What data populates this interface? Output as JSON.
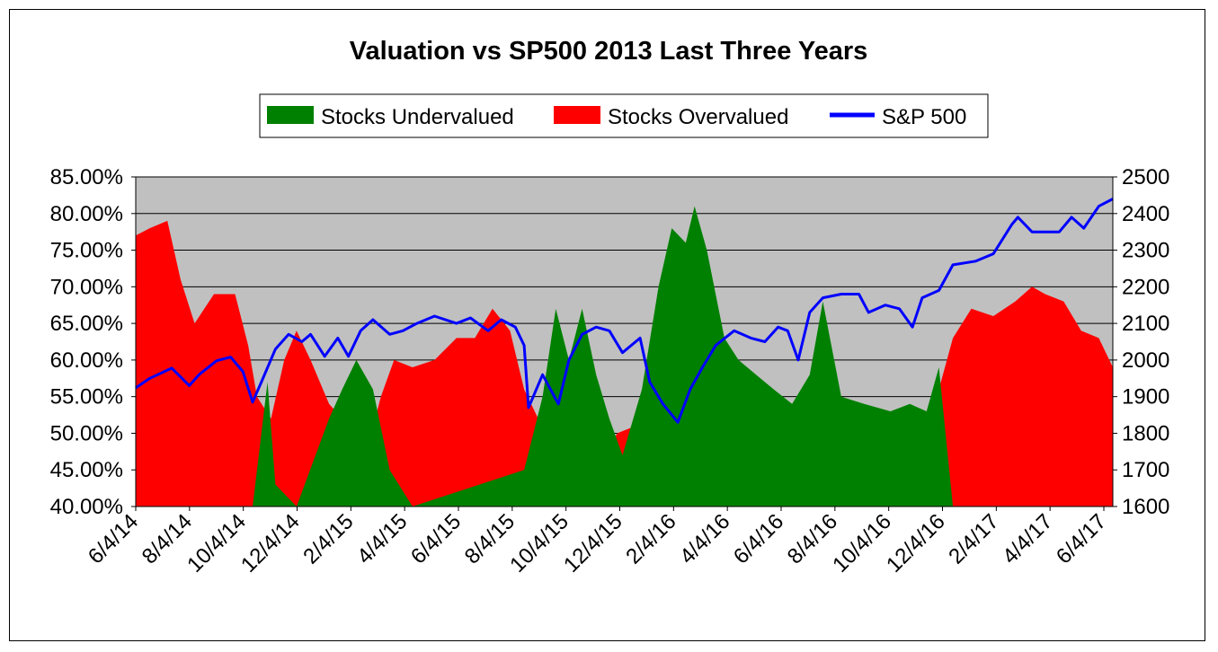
{
  "chart_data": {
    "type": "area",
    "title": "Valuation vs SP500 2013 Last Three Years",
    "legend": {
      "placement": "top",
      "entries": [
        "Stocks Undervalued",
        "Stocks Overvalued",
        "S&P 500"
      ]
    },
    "colors": {
      "undervalued": "#008000",
      "overvalued": "#ff0000",
      "sp500": "#0000ff",
      "plot_background": "#c0c0c0"
    },
    "grid": true,
    "y_left": {
      "range": [
        40,
        85
      ],
      "tick_labels": [
        "40.00%",
        "45.00%",
        "50.00%",
        "55.00%",
        "60.00%",
        "65.00%",
        "70.00%",
        "75.00%",
        "80.00%",
        "85.00%"
      ]
    },
    "y_right": {
      "range": [
        1600,
        2500
      ],
      "tick_labels": [
        "1600",
        "1700",
        "1800",
        "1900",
        "2000",
        "2100",
        "2200",
        "2300",
        "2400",
        "2500"
      ]
    },
    "x": {
      "range": [
        "2014-06-04",
        "2017-06-20"
      ],
      "tick_labels": [
        "6/4/14",
        "8/4/14",
        "10/4/14",
        "12/4/14",
        "2/4/15",
        "4/4/15",
        "6/4/15",
        "8/4/15",
        "10/4/15",
        "12/4/15",
        "2/4/16",
        "4/4/16",
        "6/4/16",
        "8/4/16",
        "10/4/16",
        "12/4/16",
        "2/4/17",
        "4/4/17",
        "6/4/17"
      ]
    },
    "series": [
      {
        "name": "Stocks Overvalued",
        "axis": "left",
        "points": [
          [
            "2014-06-04",
            77
          ],
          [
            "2014-06-20",
            78
          ],
          [
            "2014-07-10",
            79
          ],
          [
            "2014-07-25",
            71
          ],
          [
            "2014-08-10",
            65
          ],
          [
            "2014-09-01",
            69
          ],
          [
            "2014-09-25",
            69
          ],
          [
            "2014-10-10",
            62
          ],
          [
            "2014-10-20",
            55
          ],
          [
            "2014-11-05",
            52
          ],
          [
            "2014-11-20",
            60
          ],
          [
            "2014-12-04",
            64
          ],
          [
            "2014-12-20",
            60
          ],
          [
            "2015-01-10",
            54
          ],
          [
            "2015-01-25",
            52
          ],
          [
            "2015-02-10",
            50
          ],
          [
            "2015-02-25",
            49
          ],
          [
            "2015-03-10",
            55
          ],
          [
            "2015-03-25",
            60
          ],
          [
            "2015-04-15",
            59
          ],
          [
            "2015-05-10",
            60
          ],
          [
            "2015-06-04",
            63
          ],
          [
            "2015-06-25",
            63
          ],
          [
            "2015-07-15",
            67
          ],
          [
            "2015-08-04",
            64
          ],
          [
            "2015-08-20",
            56
          ],
          [
            "2015-09-05",
            52
          ],
          [
            "2015-09-25",
            42
          ],
          [
            "2015-10-15",
            41
          ],
          [
            "2015-11-01",
            44
          ],
          [
            "2015-11-20",
            47
          ],
          [
            "2015-12-04",
            50
          ],
          [
            "2015-12-25",
            51
          ],
          [
            "2016-01-15",
            44
          ],
          [
            "2016-02-04",
            40
          ],
          [
            "2016-03-01",
            40
          ],
          [
            "2016-03-25",
            40
          ],
          [
            "2016-04-15",
            42
          ],
          [
            "2016-05-05",
            40
          ],
          [
            "2016-05-25",
            44
          ],
          [
            "2016-06-15",
            47
          ],
          [
            "2016-07-05",
            49
          ],
          [
            "2016-07-25",
            40
          ],
          [
            "2016-08-10",
            46
          ],
          [
            "2016-09-01",
            48
          ],
          [
            "2016-09-25",
            49
          ],
          [
            "2016-10-15",
            50
          ],
          [
            "2016-11-01",
            48
          ],
          [
            "2016-11-20",
            49
          ],
          [
            "2016-12-04",
            56
          ],
          [
            "2016-12-20",
            63
          ],
          [
            "2017-01-10",
            67
          ],
          [
            "2017-02-04",
            66
          ],
          [
            "2017-03-01",
            68
          ],
          [
            "2017-03-20",
            70
          ],
          [
            "2017-04-04",
            69
          ],
          [
            "2017-04-25",
            68
          ],
          [
            "2017-05-15",
            64
          ],
          [
            "2017-06-04",
            63
          ],
          [
            "2017-06-20",
            59
          ]
        ]
      },
      {
        "name": "Stocks Undervalued",
        "axis": "left",
        "points": [
          [
            "2014-06-04",
            40
          ],
          [
            "2014-10-15",
            40
          ],
          [
            "2014-11-01",
            57
          ],
          [
            "2014-11-10",
            43
          ],
          [
            "2014-12-04",
            40
          ],
          [
            "2015-01-10",
            52
          ],
          [
            "2015-01-25",
            56
          ],
          [
            "2015-02-10",
            60
          ],
          [
            "2015-03-01",
            56
          ],
          [
            "2015-03-20",
            45
          ],
          [
            "2015-04-15",
            40
          ],
          [
            "2015-08-20",
            45
          ],
          [
            "2015-09-10",
            55
          ],
          [
            "2015-09-25",
            67
          ],
          [
            "2015-10-10",
            60
          ],
          [
            "2015-10-25",
            67
          ],
          [
            "2015-11-10",
            58
          ],
          [
            "2015-11-25",
            52
          ],
          [
            "2015-12-10",
            47
          ],
          [
            "2016-01-01",
            56
          ],
          [
            "2016-01-20",
            70
          ],
          [
            "2016-02-04",
            78
          ],
          [
            "2016-02-20",
            76
          ],
          [
            "2016-03-01",
            81
          ],
          [
            "2016-03-15",
            75
          ],
          [
            "2016-04-04",
            63
          ],
          [
            "2016-04-20",
            60
          ],
          [
            "2016-05-10",
            58
          ],
          [
            "2016-05-30",
            56
          ],
          [
            "2016-06-20",
            54
          ],
          [
            "2016-07-10",
            58
          ],
          [
            "2016-07-25",
            68
          ],
          [
            "2016-08-15",
            55
          ],
          [
            "2016-09-10",
            54
          ],
          [
            "2016-10-10",
            53
          ],
          [
            "2016-11-01",
            54
          ],
          [
            "2016-11-20",
            53
          ],
          [
            "2016-12-04",
            59
          ],
          [
            "2016-12-20",
            40
          ],
          [
            "2017-06-20",
            40
          ]
        ]
      },
      {
        "name": "S&P 500",
        "axis": "right",
        "points": [
          [
            "2014-06-04",
            1924
          ],
          [
            "2014-06-20",
            1950
          ],
          [
            "2014-07-15",
            1978
          ],
          [
            "2014-08-04",
            1930
          ],
          [
            "2014-08-15",
            1960
          ],
          [
            "2014-09-04",
            1998
          ],
          [
            "2014-09-20",
            2008
          ],
          [
            "2014-10-04",
            1968
          ],
          [
            "2014-10-15",
            1885
          ],
          [
            "2014-10-25",
            1940
          ],
          [
            "2014-11-10",
            2030
          ],
          [
            "2014-11-25",
            2070
          ],
          [
            "2014-12-10",
            2050
          ],
          [
            "2014-12-20",
            2070
          ],
          [
            "2015-01-05",
            2010
          ],
          [
            "2015-01-20",
            2060
          ],
          [
            "2015-02-01",
            2010
          ],
          [
            "2015-02-15",
            2080
          ],
          [
            "2015-03-01",
            2110
          ],
          [
            "2015-03-20",
            2070
          ],
          [
            "2015-04-04",
            2080
          ],
          [
            "2015-04-20",
            2100
          ],
          [
            "2015-05-10",
            2120
          ],
          [
            "2015-06-04",
            2100
          ],
          [
            "2015-06-20",
            2115
          ],
          [
            "2015-07-10",
            2080
          ],
          [
            "2015-07-25",
            2110
          ],
          [
            "2015-08-10",
            2090
          ],
          [
            "2015-08-20",
            2040
          ],
          [
            "2015-08-25",
            1870
          ],
          [
            "2015-09-10",
            1960
          ],
          [
            "2015-09-28",
            1880
          ],
          [
            "2015-10-10",
            2000
          ],
          [
            "2015-10-25",
            2070
          ],
          [
            "2015-11-10",
            2090
          ],
          [
            "2015-11-25",
            2080
          ],
          [
            "2015-12-10",
            2020
          ],
          [
            "2015-12-30",
            2060
          ],
          [
            "2016-01-10",
            1940
          ],
          [
            "2016-01-25",
            1880
          ],
          [
            "2016-02-11",
            1830
          ],
          [
            "2016-02-25",
            1920
          ],
          [
            "2016-03-10",
            1980
          ],
          [
            "2016-03-25",
            2040
          ],
          [
            "2016-04-15",
            2080
          ],
          [
            "2016-05-04",
            2060
          ],
          [
            "2016-05-20",
            2050
          ],
          [
            "2016-06-04",
            2090
          ],
          [
            "2016-06-15",
            2080
          ],
          [
            "2016-06-27",
            2000
          ],
          [
            "2016-07-10",
            2130
          ],
          [
            "2016-07-25",
            2170
          ],
          [
            "2016-08-15",
            2180
          ],
          [
            "2016-09-04",
            2180
          ],
          [
            "2016-09-15",
            2130
          ],
          [
            "2016-10-04",
            2150
          ],
          [
            "2016-10-20",
            2140
          ],
          [
            "2016-11-04",
            2090
          ],
          [
            "2016-11-15",
            2170
          ],
          [
            "2016-12-04",
            2190
          ],
          [
            "2016-12-20",
            2260
          ],
          [
            "2017-01-15",
            2270
          ],
          [
            "2017-02-04",
            2290
          ],
          [
            "2017-02-25",
            2370
          ],
          [
            "2017-03-04",
            2390
          ],
          [
            "2017-03-20",
            2350
          ],
          [
            "2017-04-04",
            2350
          ],
          [
            "2017-04-20",
            2350
          ],
          [
            "2017-05-04",
            2390
          ],
          [
            "2017-05-18",
            2360
          ],
          [
            "2017-06-04",
            2420
          ],
          [
            "2017-06-20",
            2440
          ]
        ]
      }
    ]
  }
}
